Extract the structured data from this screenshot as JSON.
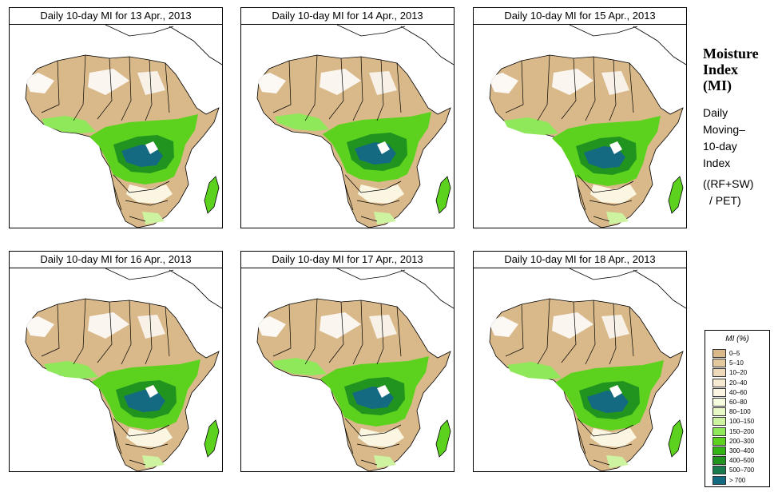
{
  "panels": [
    {
      "title": "Daily 10-day MI for  13 Apr., 2013"
    },
    {
      "title": "Daily 10-day MI for  14 Apr., 2013"
    },
    {
      "title": "Daily 10-day MI for  15 Apr., 2013"
    },
    {
      "title": "Daily 10-day MI for  16 Apr., 2013"
    },
    {
      "title": "Daily 10-day MI for  17 Apr., 2013"
    },
    {
      "title": "Daily 10-day MI for  18 Apr., 2013"
    }
  ],
  "side": {
    "title_line1": "Moisture",
    "title_line2": "Index",
    "title_line3": "(MI)",
    "text_line1": "Daily",
    "text_line2": "Moving–",
    "text_line3": "10-day",
    "text_line4": "Index",
    "formula_line1": "((RF+SW)",
    "formula_line2": "/ PET)"
  },
  "legend": {
    "title": "MI (%)",
    "items": [
      {
        "label": "0–5",
        "color": "#d9b98a"
      },
      {
        "label": "5–10",
        "color": "#e3c9a0"
      },
      {
        "label": "10–20",
        "color": "#eed9bb"
      },
      {
        "label": "20–40",
        "color": "#f6ead2"
      },
      {
        "label": "40–60",
        "color": "#fbf6e2"
      },
      {
        "label": "60–80",
        "color": "#f5fce0"
      },
      {
        "label": "80–100",
        "color": "#e9f9c6"
      },
      {
        "label": "100–150",
        "color": "#cdf3a0"
      },
      {
        "label": "150–200",
        "color": "#8fe85a"
      },
      {
        "label": "200–300",
        "color": "#5cd21e"
      },
      {
        "label": "300–400",
        "color": "#33b514"
      },
      {
        "label": "400–500",
        "color": "#20941e"
      },
      {
        "label": "500–700",
        "color": "#197a4e"
      },
      {
        "label": "> 700",
        "color": "#146a80"
      }
    ]
  }
}
